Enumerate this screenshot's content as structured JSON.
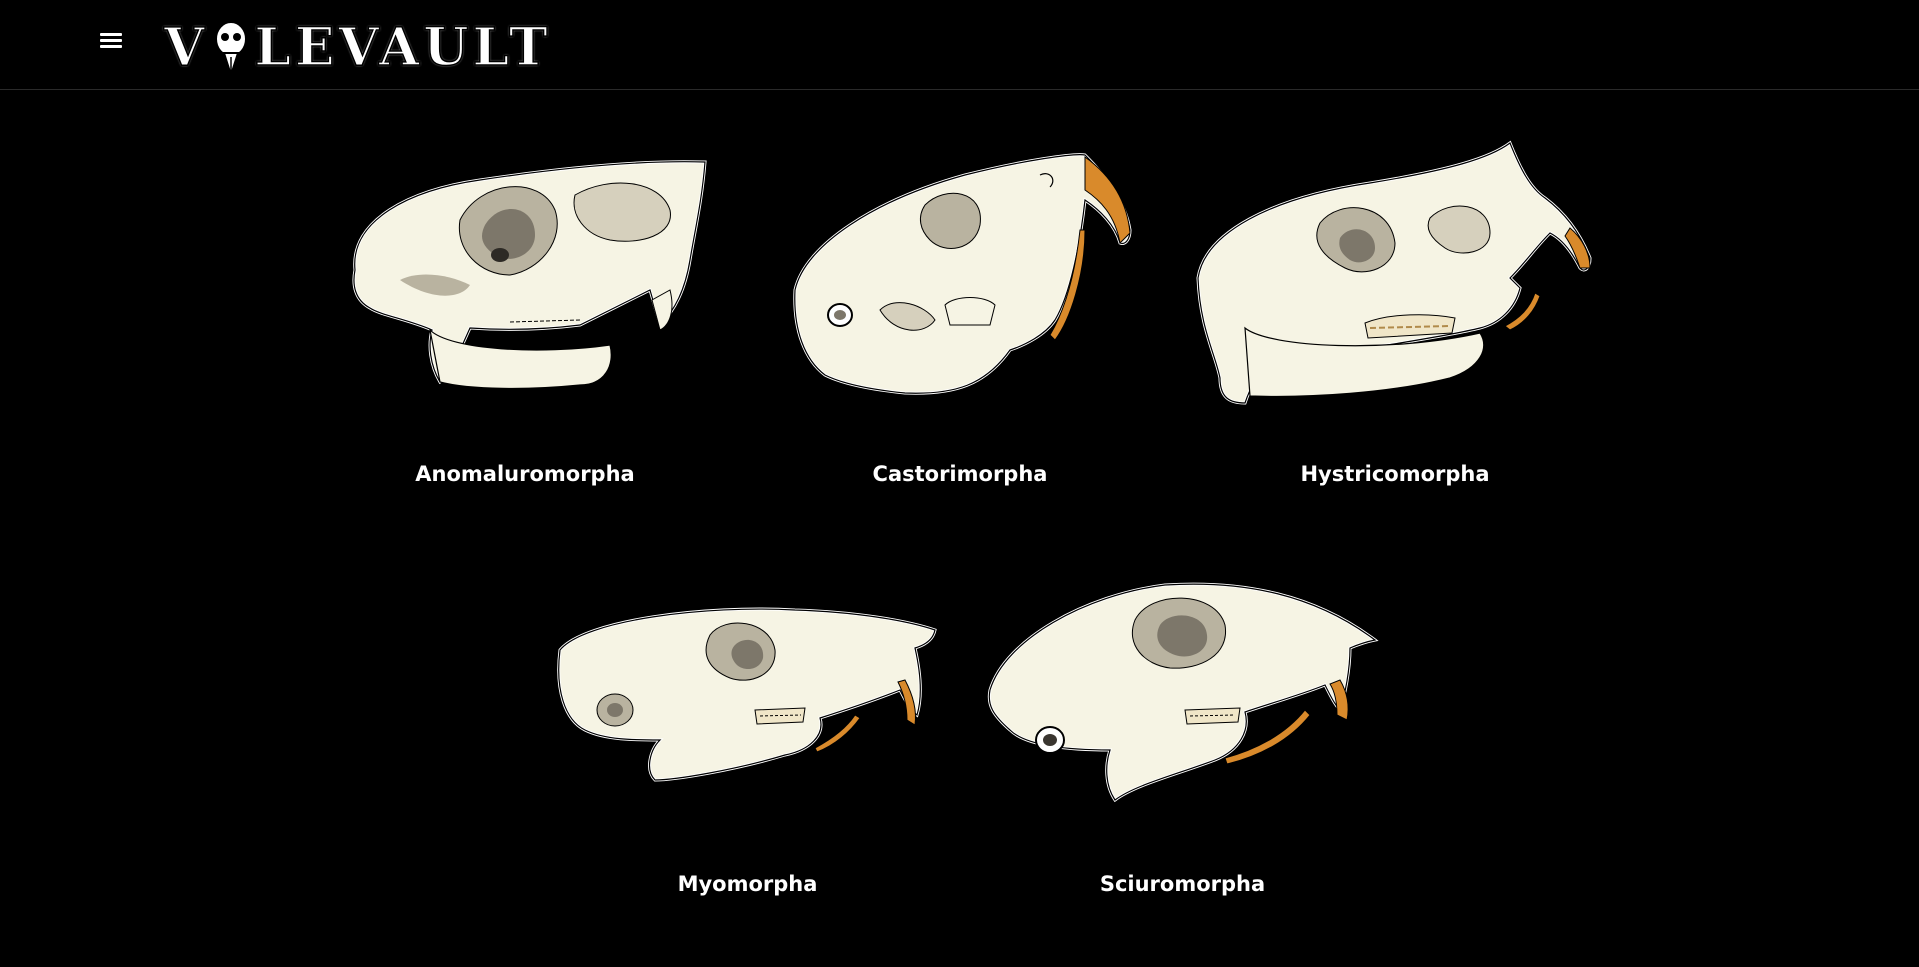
{
  "header": {
    "logo_prefix": "V",
    "logo_suffix": "LEVAULT"
  },
  "skulls": [
    {
      "label": "Anomaluromorpha"
    },
    {
      "label": "Castorimorpha"
    },
    {
      "label": "Hystricomorpha"
    },
    {
      "label": "Myomorpha"
    },
    {
      "label": "Sciuromorpha"
    }
  ],
  "colors": {
    "bone": "#f6f4e4",
    "bone_shadow": "#b9b3a0",
    "bone_dark": "#7d776a",
    "incisor": "#d98a2b"
  }
}
